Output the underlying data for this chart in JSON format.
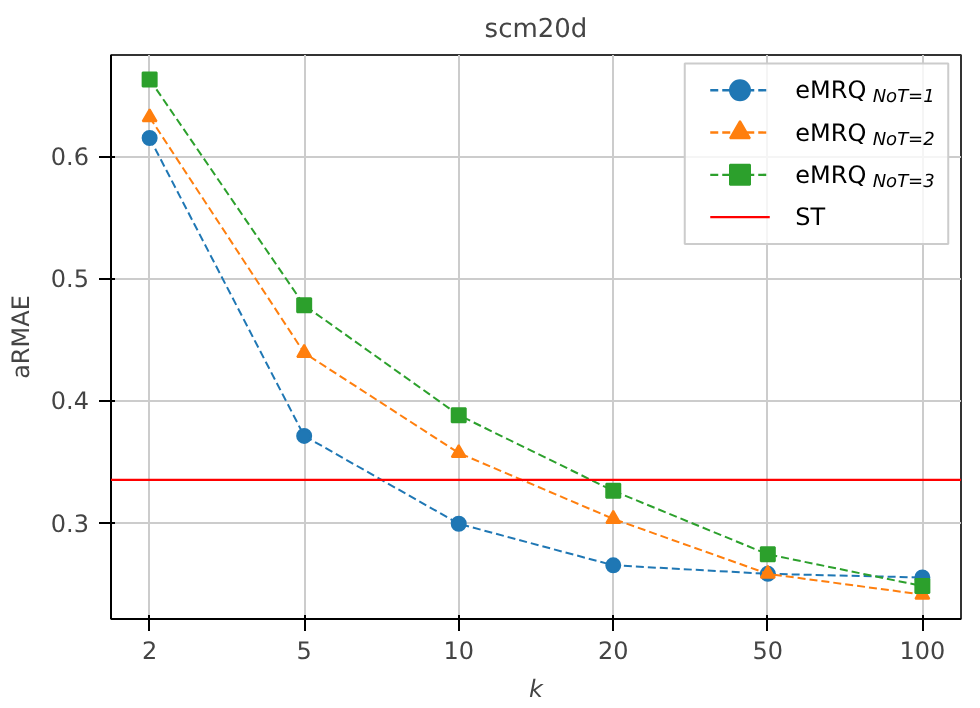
{
  "chart_data": {
    "type": "line",
    "title": "scm20d",
    "xlabel": "k",
    "ylabel": "aRMAE",
    "categories": [
      "2",
      "5",
      "10",
      "20",
      "50",
      "100"
    ],
    "series": [
      {
        "name": "eMRQ$_{NoT=1}$",
        "color": "#1f77b4",
        "marker": "circle",
        "line_style": "dashed",
        "values": [
          0.615,
          0.371,
          0.299,
          0.265,
          0.258,
          0.255
        ]
      },
      {
        "name": "eMRQ$_{NoT=2}$",
        "color": "#ff7f0e",
        "marker": "triangle",
        "line_style": "dashed",
        "values": [
          0.632,
          0.439,
          0.357,
          0.303,
          0.258,
          0.241
        ]
      },
      {
        "name": "eMRQ$_{NoT=3}$",
        "color": "#2ca02c",
        "marker": "square",
        "line_style": "dashed",
        "values": [
          0.663,
          0.478,
          0.388,
          0.326,
          0.274,
          0.248
        ]
      }
    ],
    "ref_lines": [
      {
        "axis": "y",
        "value": 0.335,
        "label": "ST",
        "color": "#ff0000",
        "line_style": "solid"
      }
    ],
    "ylim": [
      0.221,
      0.683
    ],
    "yticks": [
      0.3,
      0.4,
      0.5,
      0.6
    ],
    "grid": true,
    "legend": "top right"
  }
}
